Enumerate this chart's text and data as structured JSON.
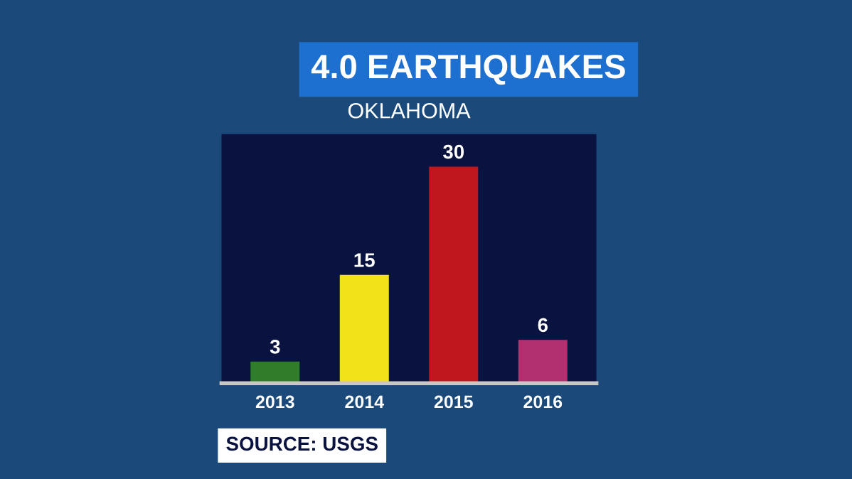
{
  "chart_data": {
    "type": "bar",
    "title": "4.0 EARTHQUAKES",
    "subtitle": "OKLAHOMA",
    "categories": [
      "2013",
      "2014",
      "2015",
      "2016"
    ],
    "values": [
      3,
      15,
      30,
      6
    ],
    "colors": [
      "#2f7d2a",
      "#f2e21a",
      "#c0161d",
      "#b2306f"
    ],
    "data_labels": true,
    "grid": false,
    "legend": false,
    "annotations": [
      "SOURCE: USGS"
    ]
  }
}
